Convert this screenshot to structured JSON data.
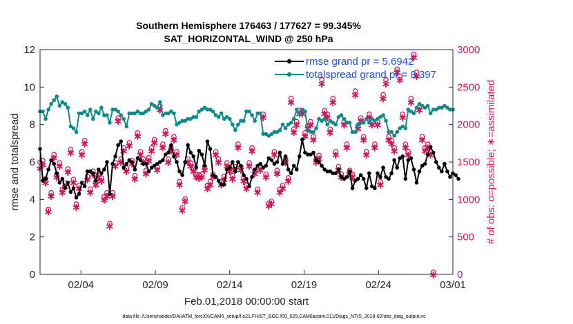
{
  "chart_data": {
    "type": "line",
    "title_line1": "Southern Hemisphere 176463 / 177627 = 99.345%",
    "title_line2": "SAT_HORIZONTAL_WIND @ 250 hPa",
    "xlabel": "Feb.01,2018 00:00:00 start",
    "ylabel_left": "rmse and totalspread",
    "ylabel_right": "# of obs: o=possible; ∗=assimilated",
    "footnote": "data file: /Users/raeder/DAI/ATM_forcXX/CAM6_setup/f.e21.FHIST_BGC.f09_025.CAM6assim.011/Diags_NTrS_2018-02/obs_diag_output.nc",
    "x_ticks": [
      {
        "value": 3,
        "label": "02/04"
      },
      {
        "value": 8,
        "label": "02/09"
      },
      {
        "value": 13,
        "label": "02/14"
      },
      {
        "value": 18,
        "label": "02/19"
      },
      {
        "value": 23,
        "label": "02/24"
      },
      {
        "value": 28,
        "label": "03/01"
      }
    ],
    "xlim": [
      0.25,
      28.0
    ],
    "ylim_left": [
      0,
      12
    ],
    "y_ticks_left": [
      "0",
      "2",
      "4",
      "6",
      "8",
      "10",
      "12"
    ],
    "ylim_right": [
      0,
      3000
    ],
    "y_ticks_right": [
      "0",
      "500",
      "1000",
      "1500",
      "2000",
      "2500",
      "3000"
    ],
    "colors": {
      "rmse": "#000000",
      "spread": "#0f8a8a",
      "obs": "#d4145a",
      "legend_text": "#1d4fe0"
    },
    "legend": {
      "position": "top-right",
      "entries": [
        "rmse grand pr = 5.6942",
        "totalspread grand pr = 8.397"
      ]
    },
    "series": [
      {
        "name": "rmse grand pr = 5.6942",
        "axis": "left",
        "values": [
          6.7,
          5.0,
          5.1,
          5.6,
          6.1,
          5.9,
          5.4,
          4.9,
          5.1,
          4.6,
          4.9,
          4.4,
          4.6,
          4.1,
          4.3,
          4.9,
          4.7,
          5.5,
          5.5,
          5.4,
          5.0,
          5.6,
          5.4,
          5.6,
          6.0,
          4.3,
          5.9,
          6.3,
          6.9,
          7.1,
          5.7,
          5.9,
          6.1,
          6.0,
          5.6,
          6.2,
          6.1,
          5.9,
          5.9,
          5.5,
          5.7,
          5.8,
          5.9,
          6.0,
          6.1,
          6.4,
          6.5,
          6.9,
          6.3,
          6.0,
          5.5,
          5.3,
          6.0,
          6.9,
          6.5,
          6.3,
          5.7,
          6.6,
          6.4,
          5.8,
          7.1,
          6.7,
          5.3,
          5.2,
          5.0,
          4.8,
          4.8,
          5.6,
          5.7,
          6.0,
          5.5,
          6.0,
          5.8,
          5.3,
          5.1,
          4.7,
          5.2,
          5.6,
          5.8,
          5.9,
          5.7,
          5.8,
          6.2,
          6.1,
          5.9,
          6.0,
          6.5,
          5.9,
          6.3,
          5.6,
          5.4,
          5.8,
          5.6,
          6.3,
          7.2,
          6.5,
          6.4,
          6.4,
          6.5,
          6.1,
          6.0,
          5.8,
          5.6,
          5.5,
          5.5,
          5.4,
          5.4,
          5.6,
          5.2,
          5.1,
          5.2,
          5.5,
          4.6,
          5.0,
          5.1,
          5.3,
          5.1,
          4.6,
          5.4,
          4.7,
          4.6,
          5.4,
          5.2,
          5.7,
          5.2,
          5.1,
          5.4,
          6.1,
          5.7,
          6.2,
          6.3,
          5.1,
          6.1,
          6.2,
          5.6,
          4.9,
          5.5,
          5.8,
          5.9,
          6.4,
          6.8,
          6.5,
          6.0,
          5.7,
          5.5,
          5.9,
          5.5,
          5.2,
          5.4,
          5.3,
          5.1
        ]
      },
      {
        "name": "totalspread grand pr = 8.397",
        "axis": "left",
        "values": [
          8.7,
          8.7,
          8.3,
          8.8,
          9.1,
          9.3,
          9.5,
          9.0,
          9.2,
          9.1,
          8.9,
          7.9,
          7.8,
          7.6,
          8.6,
          8.6,
          8.7,
          8.5,
          8.8,
          8.3,
          8.7,
          8.6,
          8.9,
          8.5,
          8.5,
          8.1,
          8.8,
          8.8,
          8.7,
          8.5,
          8.3,
          7.9,
          8.6,
          8.6,
          8.6,
          8.7,
          8.6,
          8.6,
          8.7,
          8.8,
          9.1,
          9.0,
          8.9,
          9.2,
          8.5,
          8.6,
          8.6,
          8.7,
          8.6,
          8.0,
          8.1,
          8.2,
          8.2,
          8.3,
          8.3,
          8.4,
          8.4,
          8.7,
          8.8,
          8.9,
          8.8,
          8.8,
          8.7,
          8.5,
          8.4,
          8.6,
          8.3,
          8.4,
          8.3,
          8.0,
          7.7,
          8.0,
          8.2,
          8.2,
          8.7,
          8.7,
          8.5,
          8.2,
          8.6,
          8.6,
          7.5,
          7.5,
          7.4,
          7.5,
          7.6,
          7.6,
          7.7,
          8.0,
          7.8,
          8.0,
          8.1,
          8.3,
          8.8,
          8.6,
          8.8,
          8.7,
          7.7,
          7.6,
          7.6,
          7.8,
          8.3,
          8.2,
          8.3,
          8.0,
          8.2,
          8.1,
          8.0,
          8.4,
          8.5,
          8.3,
          8.1,
          8.1,
          7.6,
          7.6,
          8.0,
          8.1,
          8.1,
          8.3,
          8.1,
          8.3,
          8.2,
          8.3,
          8.4,
          8.5,
          8.2,
          7.6,
          7.6,
          7.4,
          7.6,
          7.8,
          7.9,
          7.8,
          8.8,
          8.7,
          8.6,
          8.9,
          9.1,
          9.0,
          8.9,
          9.0,
          8.6,
          8.8,
          8.8,
          8.9,
          8.9,
          9.0,
          8.9,
          8.8,
          8.8
        ]
      },
      {
        "name": "obs assimilated",
        "axis": "right",
        "values": [
          1420,
          1470,
          1230,
          840,
          1050,
          1560,
          1300,
          1450,
          1100,
          1180,
          1370,
          1630,
          1230,
          900,
          1150,
          1600,
          1750,
          1270,
          1100,
          1340,
          1200,
          1300,
          1250,
          1000,
          1050,
          650,
          1050,
          1450,
          2050,
          1500,
          1650,
          1380,
          1720,
          1480,
          1280,
          1850,
          1600,
          1500,
          1350,
          1520,
          1650,
          1760,
          1400,
          2200,
          1700,
          1880,
          1500,
          1650,
          1800,
          1600,
          1200,
          860,
          980,
          1500,
          1450,
          1380,
          1300,
          1290,
          1300,
          1400,
          1150,
          1200,
          1300,
          1600,
          1500,
          1200,
          1270,
          1450,
          1380,
          1280,
          1400,
          1700,
          1400,
          1250,
          1150,
          1450,
          1650,
          1350,
          1100,
          1400,
          2100,
          1300,
          920,
          950,
          1600,
          1350,
          1100,
          1150,
          1500,
          1250,
          2300,
          1900,
          2000,
          2150,
          2150,
          1850,
          1950,
          2000,
          1800,
          1500,
          1550,
          2550,
          2150,
          2100,
          1900,
          2300,
          1600,
          1400,
          1300,
          2000,
          1700,
          1350,
          1300,
          2400,
          1950,
          2050,
          1800,
          1600,
          2100,
          2000,
          1700,
          2000,
          1200,
          2350,
          2550,
          1800,
          1750,
          1650,
          2700,
          2600,
          2100,
          1700,
          1600,
          2300,
          2900,
          2650,
          2200,
          1800,
          1650,
          1700,
          1600,
          0
        ]
      },
      {
        "name": "obs possible",
        "axis": "right",
        "values": [
          1480,
          1500,
          1260,
          850,
          1070,
          1580,
          1320,
          1470,
          1120,
          1200,
          1390,
          1650,
          1250,
          920,
          1170,
          1620,
          1770,
          1290,
          1120,
          1360,
          1220,
          1320,
          1270,
          1020,
          1070,
          660,
          1070,
          1470,
          2070,
          1520,
          1670,
          1400,
          1740,
          1500,
          1300,
          1870,
          1620,
          1520,
          1370,
          1540,
          1670,
          1780,
          1420,
          2230,
          1720,
          1900,
          1520,
          1670,
          1820,
          1620,
          1220,
          870,
          990,
          1520,
          1470,
          1400,
          1320,
          1310,
          1320,
          1420,
          1170,
          1220,
          1320,
          1620,
          1520,
          1220,
          1290,
          1470,
          1400,
          1300,
          1420,
          1720,
          1420,
          1270,
          1170,
          1470,
          1670,
          1370,
          1120,
          1420,
          2120,
          1320,
          930,
          960,
          1620,
          1370,
          1120,
          1170,
          1520,
          1270,
          2330,
          1920,
          2020,
          2170,
          2170,
          1870,
          1970,
          2020,
          1820,
          1520,
          1570,
          2580,
          2170,
          2120,
          1920,
          2330,
          1620,
          1420,
          1320,
          2020,
          1720,
          1370,
          1320,
          2430,
          1970,
          2070,
          1820,
          1620,
          2120,
          2020,
          1720,
          2020,
          1220,
          2380,
          2580,
          1820,
          1770,
          1670,
          2720,
          2630,
          2120,
          1720,
          1620,
          2330,
          2920,
          2680,
          2220,
          1820,
          1670,
          1720,
          1620,
          10
        ]
      }
    ]
  }
}
